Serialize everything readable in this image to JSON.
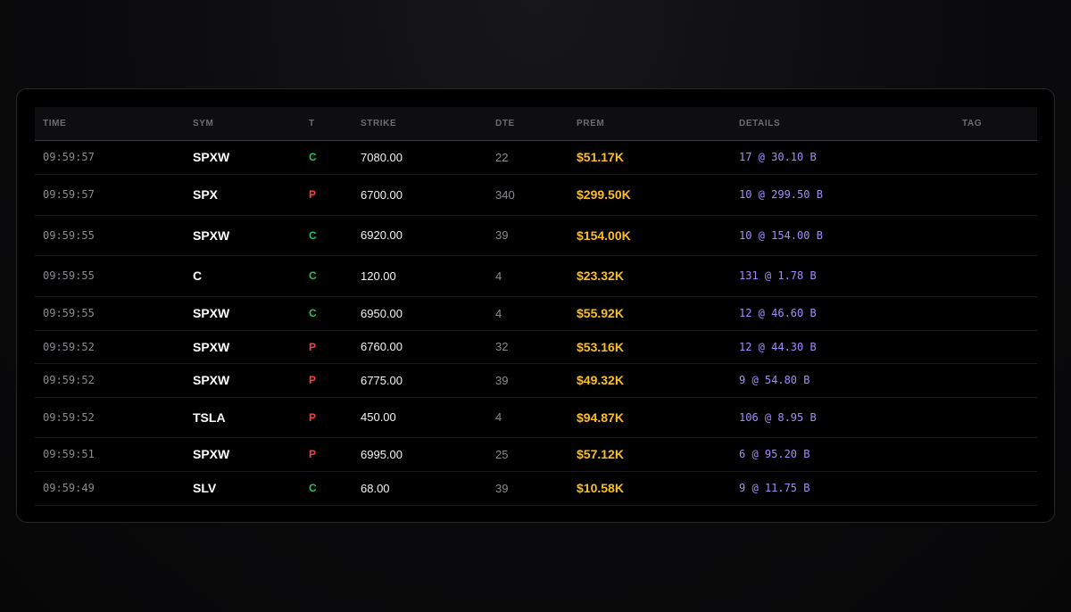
{
  "colors": {
    "call": "#22c55e",
    "put": "#ef4444",
    "premium": "#fbbf24",
    "details": "#a78bfa"
  },
  "table": {
    "headers": [
      "TIME",
      "SYM",
      "T",
      "STRIKE",
      "DTE",
      "PREM",
      "DETAILS",
      "TAG"
    ],
    "rows": [
      {
        "time": "09:59:57",
        "sym": "SPXW",
        "type": "C",
        "strike": "7080.00",
        "dte": "22",
        "prem": "$51.17K",
        "details": "17 @ 30.10 B",
        "tag": ""
      },
      {
        "time": "09:59:57",
        "sym": "SPX",
        "type": "P",
        "strike": "6700.00",
        "dte": "340",
        "prem": "$299.50K",
        "details": "10 @ 299.50 B",
        "tag": ""
      },
      {
        "time": "09:59:55",
        "sym": "SPXW",
        "type": "C",
        "strike": "6920.00",
        "dte": "39",
        "prem": "$154.00K",
        "details": "10 @ 154.00 B",
        "tag": ""
      },
      {
        "time": "09:59:55",
        "sym": "C",
        "type": "C",
        "strike": "120.00",
        "dte": "4",
        "prem": "$23.32K",
        "details": "131 @ 1.78 B",
        "tag": ""
      },
      {
        "time": "09:59:55",
        "sym": "SPXW",
        "type": "C",
        "strike": "6950.00",
        "dte": "4",
        "prem": "$55.92K",
        "details": "12 @ 46.60 B",
        "tag": ""
      },
      {
        "time": "09:59:52",
        "sym": "SPXW",
        "type": "P",
        "strike": "6760.00",
        "dte": "32",
        "prem": "$53.16K",
        "details": "12 @ 44.30 B",
        "tag": ""
      },
      {
        "time": "09:59:52",
        "sym": "SPXW",
        "type": "P",
        "strike": "6775.00",
        "dte": "39",
        "prem": "$49.32K",
        "details": "9 @ 54.80 B",
        "tag": ""
      },
      {
        "time": "09:59:52",
        "sym": "TSLA",
        "type": "P",
        "strike": "450.00",
        "dte": "4",
        "prem": "$94.87K",
        "details": "106 @ 8.95 B",
        "tag": ""
      },
      {
        "time": "09:59:51",
        "sym": "SPXW",
        "type": "P",
        "strike": "6995.00",
        "dte": "25",
        "prem": "$57.12K",
        "details": "6 @ 95.20 B",
        "tag": ""
      },
      {
        "time": "09:59:49",
        "sym": "SLV",
        "type": "C",
        "strike": "68.00",
        "dte": "39",
        "prem": "$10.58K",
        "details": "9 @ 11.75 B",
        "tag": ""
      }
    ]
  }
}
